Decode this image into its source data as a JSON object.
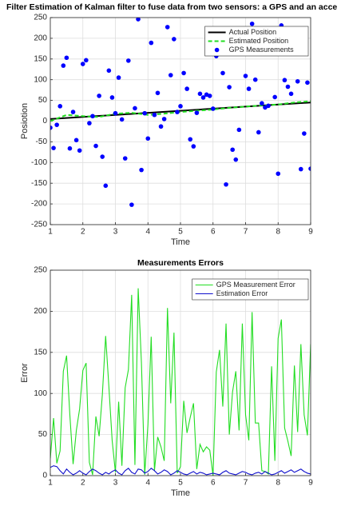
{
  "chart_data": [
    {
      "type": "line",
      "title": "Filter Estimation of Kalman filter to fuse data from two sensors: a GPS and an acce",
      "xlabel": "Time",
      "ylabel": "Posiotion",
      "xlim": [
        1,
        9
      ],
      "xticks": [
        1,
        2,
        3,
        4,
        5,
        6,
        7,
        8,
        9
      ],
      "ylim": [
        -250,
        250
      ],
      "yticks": [
        -250,
        -200,
        -150,
        -100,
        -50,
        0,
        50,
        100,
        150,
        200,
        250
      ],
      "grid": true,
      "legend": "top-right",
      "series": [
        {
          "name": "Actual Position",
          "color": "#000000",
          "style": "solid",
          "x": [
            1,
            9
          ],
          "values": [
            5,
            45
          ]
        },
        {
          "name": "Estimated Position",
          "color": "#22dd22",
          "style": "dashed",
          "x": [
            1,
            1.5,
            2,
            2.5,
            3,
            3.5,
            4,
            4.5,
            5,
            5.5,
            6,
            6.5,
            7,
            7.5,
            8,
            8.5,
            9
          ],
          "values": [
            0,
            15,
            12,
            10,
            18,
            20,
            15,
            18,
            22,
            25,
            28,
            32,
            35,
            38,
            40,
            45,
            48
          ]
        },
        {
          "name": "GPS Measurements",
          "color": "#0000ff",
          "style": "marker",
          "x": [
            1,
            1.1,
            1.2,
            1.3,
            1.4,
            1.5,
            1.6,
            1.7,
            1.8,
            1.9,
            2,
            2.1,
            2.2,
            2.3,
            2.4,
            2.5,
            2.6,
            2.7,
            2.8,
            2.9,
            3,
            3.1,
            3.2,
            3.3,
            3.4,
            3.5,
            3.6,
            3.7,
            3.8,
            3.9,
            4,
            4.1,
            4.2,
            4.3,
            4.4,
            4.5,
            4.6,
            4.7,
            4.8,
            4.9,
            5,
            5.1,
            5.2,
            5.3,
            5.4,
            5.5,
            5.6,
            5.7,
            5.8,
            5.9,
            6,
            6.1,
            6.2,
            6.3,
            6.4,
            6.5,
            6.6,
            6.7,
            6.8,
            6.9,
            7,
            7.1,
            7.2,
            7.3,
            7.4,
            7.5,
            7.6,
            7.7,
            7.8,
            7.9,
            8,
            8.1,
            8.2,
            8.3,
            8.4,
            8.5,
            8.6,
            8.7,
            8.8,
            8.9,
            9
          ],
          "values": [
            -16,
            -65,
            -9,
            36,
            134,
            153,
            -66,
            22,
            -46,
            -71,
            138,
            147,
            -5,
            12,
            -60,
            61,
            -86,
            -156,
            122,
            57,
            19,
            105,
            4,
            -90,
            146,
            -202,
            31,
            246,
            -118,
            19,
            -42,
            189,
            15,
            68,
            -13,
            5,
            227,
            111,
            198,
            22,
            36,
            116,
            78,
            -44,
            -61,
            20,
            66,
            57,
            64,
            61,
            30,
            157,
            184,
            116,
            -153,
            82,
            -69,
            -93,
            -21,
            219,
            109,
            78,
            235,
            100,
            -27,
            43,
            33,
            37,
            172,
            58,
            -127,
            231,
            99,
            83,
            66,
            176,
            96,
            -116,
            -30,
            93,
            -115
          ]
        }
      ]
    },
    {
      "type": "line",
      "title": "Measurements Errors",
      "xlabel": "Time",
      "ylabel": "Error",
      "xlim": [
        1,
        9
      ],
      "xticks": [
        1,
        2,
        3,
        4,
        5,
        6,
        7,
        8,
        9
      ],
      "ylim": [
        0,
        250
      ],
      "yticks": [
        0,
        50,
        100,
        150,
        200,
        250
      ],
      "grid": true,
      "legend": "top-right",
      "series": [
        {
          "name": "GPS Measurement Error",
          "color": "#22dd22",
          "style": "solid",
          "x": [
            1,
            1.1,
            1.2,
            1.3,
            1.4,
            1.5,
            1.6,
            1.7,
            1.8,
            1.9,
            2,
            2.1,
            2.2,
            2.3,
            2.4,
            2.5,
            2.6,
            2.7,
            2.8,
            2.9,
            3,
            3.1,
            3.2,
            3.3,
            3.4,
            3.5,
            3.6,
            3.7,
            3.8,
            3.9,
            4,
            4.1,
            4.2,
            4.3,
            4.4,
            4.5,
            4.6,
            4.7,
            4.8,
            4.9,
            5,
            5.1,
            5.2,
            5.3,
            5.4,
            5.5,
            5.6,
            5.7,
            5.8,
            5.9,
            6,
            6.1,
            6.2,
            6.3,
            6.4,
            6.5,
            6.6,
            6.7,
            6.8,
            6.9,
            7,
            7.1,
            7.2,
            7.3,
            7.4,
            7.5,
            7.6,
            7.7,
            7.8,
            7.9,
            8,
            8.1,
            8.2,
            8.3,
            8.4,
            8.5,
            8.6,
            8.7,
            8.8,
            8.9,
            9
          ],
          "values": [
            21,
            70,
            15,
            30,
            127,
            146,
            74,
            14,
            55,
            81,
            128,
            137,
            16,
            1,
            72,
            48,
            99,
            170,
            108,
            43,
            4,
            90,
            12,
            107,
            129,
            220,
            13,
            228,
            137,
            1,
            62,
            169,
            6,
            47,
            35,
            18,
            204,
            88,
            174,
            3,
            11,
            91,
            52,
            71,
            88,
            8,
            38,
            29,
            35,
            31,
            0,
            126,
            153,
            84,
            185,
            50,
            102,
            127,
            55,
            185,
            74,
            43,
            199,
            64,
            64,
            6,
            5,
            2,
            133,
            18,
            167,
            190,
            58,
            42,
            24,
            134,
            53,
            160,
            74,
            49,
            160
          ]
        },
        {
          "name": "Estimation Error",
          "color": "#1010cc",
          "style": "solid",
          "x": [
            1,
            1.1,
            1.2,
            1.3,
            1.4,
            1.5,
            1.6,
            1.7,
            1.8,
            1.9,
            2,
            2.1,
            2.2,
            2.3,
            2.4,
            2.5,
            2.6,
            2.7,
            2.8,
            2.9,
            3,
            3.1,
            3.2,
            3.3,
            3.4,
            3.5,
            3.6,
            3.7,
            3.8,
            3.9,
            4,
            4.1,
            4.2,
            4.3,
            4.4,
            4.5,
            4.6,
            4.7,
            4.8,
            4.9,
            5,
            5.1,
            5.2,
            5.3,
            5.4,
            5.5,
            5.6,
            5.7,
            5.8,
            5.9,
            6,
            6.1,
            6.2,
            6.3,
            6.4,
            6.5,
            6.6,
            6.7,
            6.8,
            6.9,
            7,
            7.1,
            7.2,
            7.3,
            7.4,
            7.5,
            7.6,
            7.7,
            7.8,
            7.9,
            8,
            8.1,
            8.2,
            8.3,
            8.4,
            8.5,
            8.6,
            8.7,
            8.8,
            8.9,
            9
          ],
          "values": [
            10,
            12,
            11,
            6,
            2,
            8,
            4,
            1,
            3,
            6,
            3,
            1,
            5,
            8,
            6,
            3,
            1,
            4,
            2,
            5,
            7,
            3,
            1,
            6,
            9,
            4,
            2,
            8,
            7,
            3,
            5,
            9,
            6,
            2,
            4,
            7,
            5,
            1,
            3,
            6,
            4,
            2,
            1,
            3,
            5,
            2,
            4,
            3,
            1,
            2,
            3,
            2,
            1,
            4,
            6,
            3,
            2,
            1,
            3,
            5,
            4,
            2,
            1,
            3,
            4,
            2,
            5,
            3,
            1,
            2,
            4,
            6,
            3,
            5,
            7,
            4,
            6,
            8,
            5,
            3,
            2
          ]
        }
      ]
    }
  ]
}
